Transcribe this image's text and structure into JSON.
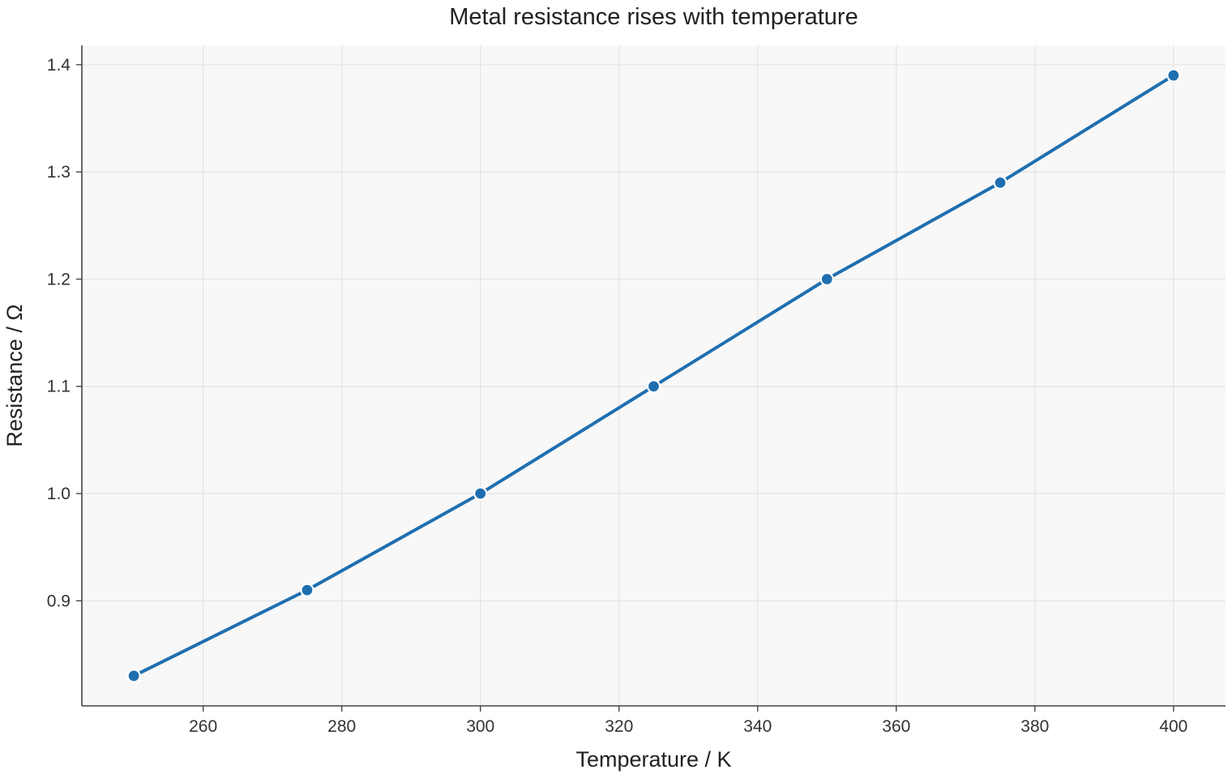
{
  "chart_data": {
    "type": "line",
    "title": "Metal resistance rises with temperature",
    "xlabel": "Temperature / K",
    "ylabel": "Resistance / Ω",
    "x": [
      250,
      275,
      300,
      325,
      350,
      375,
      400
    ],
    "series": [
      {
        "values": [
          0.83,
          0.91,
          1.0,
          1.1,
          1.2,
          1.29,
          1.39
        ],
        "color": "#1f6fb0",
        "marker": "circle"
      }
    ],
    "xlim": [
      242.5,
      407.5
    ],
    "ylim": [
      0.802,
      1.418
    ],
    "xticks": [
      260,
      280,
      300,
      320,
      340,
      360,
      380,
      400
    ],
    "xtick_labels": [
      "260",
      "280",
      "300",
      "320",
      "340",
      "360",
      "380",
      "400"
    ],
    "yticks": [
      0.9,
      1.0,
      1.1,
      1.2,
      1.3,
      1.4
    ],
    "ytick_labels": [
      "0.9",
      "1.0",
      "1.1",
      "1.2",
      "1.3",
      "1.4"
    ],
    "grid": true,
    "plot_background": "#f8f8f8",
    "grid_color": "#e4e4e4",
    "axis_color": "#444444"
  }
}
